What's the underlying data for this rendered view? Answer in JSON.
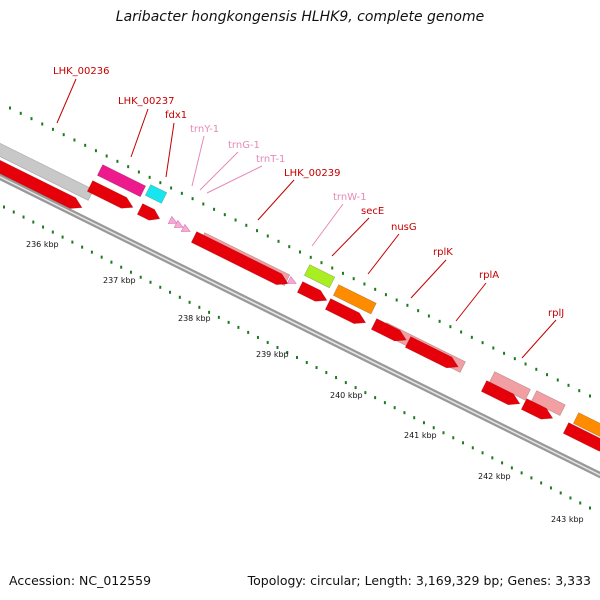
{
  "title": "Laribacter hongkongensis HLHK9, complete genome",
  "footer": {
    "accession": "Accession: NC_012559",
    "summary": "Topology: circular; Length: 3,169,329 bp; Genes: 3,333"
  },
  "colors": {
    "cds": "#e6000a",
    "gene_dark_red": "#c00000",
    "rrna_pink": "#f19fa3",
    "trna_pink": "#f7a8d8",
    "tick_green": "#1f7a1f",
    "label_dark_red": "#c40000",
    "label_pink": "#e58ab8"
  },
  "tick_labels": [
    "236 kbp",
    "237 kbp",
    "238 kbp",
    "239 kbp",
    "240 kbp",
    "241 kbp",
    "242 kbp",
    "243 kbp"
  ],
  "genes": [
    {
      "label": "LHK_00236",
      "color": "#c40000"
    },
    {
      "label": "LHK_00237",
      "color": "#c40000"
    },
    {
      "label": "fdx1",
      "color": "#c40000"
    },
    {
      "label": "trnY-1",
      "color": "#e58ab8"
    },
    {
      "label": "trnG-1",
      "color": "#e58ab8"
    },
    {
      "label": "trnT-1",
      "color": "#e58ab8"
    },
    {
      "label": "LHK_00239",
      "color": "#c40000"
    },
    {
      "label": "trnW-1",
      "color": "#e58ab8"
    },
    {
      "label": "secE",
      "color": "#c40000"
    },
    {
      "label": "nusG",
      "color": "#c40000"
    },
    {
      "label": "rplK",
      "color": "#c40000"
    },
    {
      "label": "rplA",
      "color": "#c40000"
    },
    {
      "label": "rplJ",
      "color": "#c40000"
    }
  ]
}
